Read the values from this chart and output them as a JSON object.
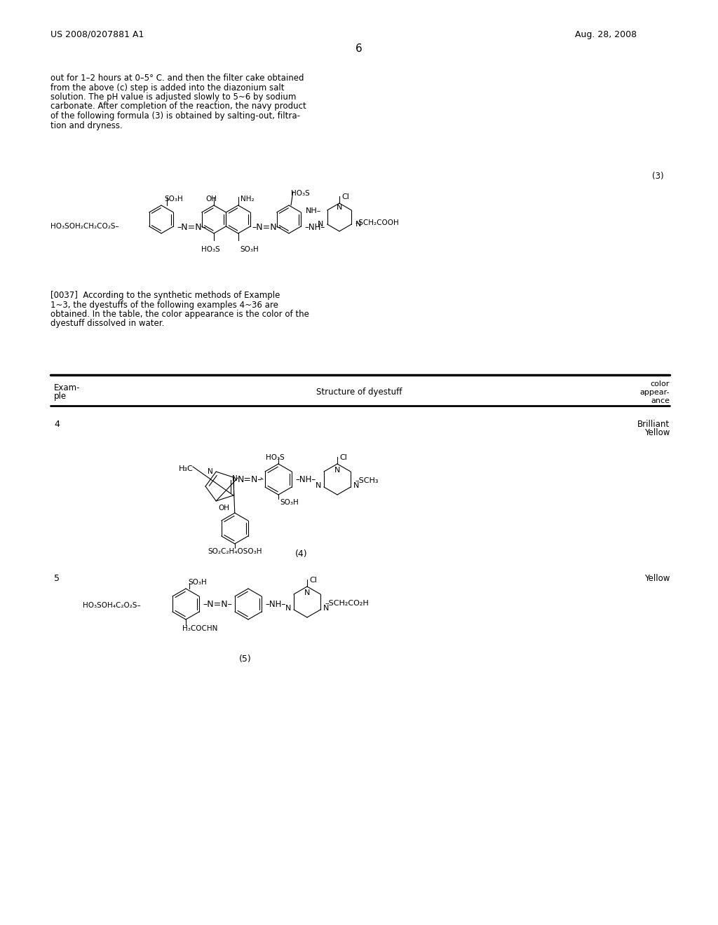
{
  "background_color": "#ffffff",
  "header_left": "US 2008/0207881 A1",
  "header_right": "Aug. 28, 2008",
  "page_number": "6",
  "para_lines": [
    "out for 1–2 hours at 0–5° C. and then the filter cake obtained",
    "from the above (c) step is added into the diazonium salt",
    "solution. The pH value is adjusted slowly to 5~6 by sodium",
    "carbonate. After completion of the reaction, the navy product",
    "of the following formula (3) is obtained by salting-out, filtra-",
    "tion and dryness."
  ],
  "para037_lines": [
    "[0037]  According to the synthetic methods of Example",
    "1~3, the dyestuffs of the following examples 4~36 are",
    "obtained. In the table, the color appearance is the color of the",
    "dyestuff dissolved in water."
  ],
  "formula3_label": "(3)",
  "formula4_label": "(4)",
  "formula5_label": "(5)",
  "table_header_col1": [
    "Exam-",
    "ple"
  ],
  "table_header_col2": "Structure of dyestuff",
  "table_header_col3": [
    "color",
    "appear-",
    "ance"
  ],
  "ex4_num": "4",
  "ex4_color": [
    "Brilliant",
    "Yellow"
  ],
  "ex5_num": "5",
  "ex5_color": "Yellow"
}
